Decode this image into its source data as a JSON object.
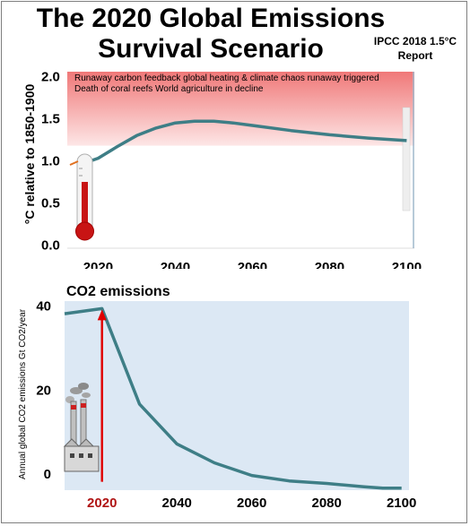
{
  "title_line1": "The 2020 Global Emissions",
  "title_line2": "Survival Scenario",
  "source_line1": "IPCC 2018 1.5°C",
  "source_line2": "Report",
  "colors": {
    "curve": "#3e7e86",
    "danger_zone_top": "#f07878",
    "danger_zone_bottom": "#fde6e6",
    "emissions_bg": "#dce8f4",
    "arrow": "#e00000",
    "year_2020_highlight": "#b01515",
    "thermometer_red": "#c81414"
  },
  "icons": {
    "thermometer": "thermometer-icon",
    "factory": "factory-smokestack-icon"
  },
  "chart_data": [
    {
      "type": "line",
      "title": "",
      "ylabel": "°C relative to 1850-1900",
      "xlabel": "",
      "x_ticks": [
        "2020",
        "2040",
        "2060",
        "2080",
        "2100"
      ],
      "y_ticks": [
        "0.0",
        "0.5",
        "1.0",
        "1.5",
        "2.0"
      ],
      "xlim": [
        2012,
        2102
      ],
      "ylim": [
        -0.05,
        2.05
      ],
      "shaded_zone": {
        "y_from": 1.17,
        "y_to": 2.05,
        "line1": "Runaway carbon feedback global heating & climate chaos runaway triggered",
        "line2": "Death of coral reefs  World agriculture in decline"
      },
      "series": [
        {
          "x": [
            2012,
            2015,
            2020,
            2025,
            2030,
            2035,
            2040,
            2045,
            2050,
            2055,
            2060,
            2070,
            2080,
            2090,
            2100
          ],
          "y": [
            0.88,
            0.94,
            1.02,
            1.16,
            1.29,
            1.38,
            1.44,
            1.46,
            1.46,
            1.44,
            1.41,
            1.35,
            1.3,
            1.26,
            1.23
          ]
        }
      ]
    },
    {
      "type": "line",
      "title": "CO2 emissions",
      "ylabel": "Annual global CO2 emissions Gt CO2/year",
      "xlabel": "",
      "x_ticks": [
        "2020",
        "2040",
        "2060",
        "2080",
        "2100"
      ],
      "highlight_tick": "2020",
      "y_ticks": [
        "0",
        "20",
        "40"
      ],
      "xlim": [
        2010,
        2102
      ],
      "ylim": [
        -4,
        41
      ],
      "series": [
        {
          "x": [
            2010,
            2020,
            2030,
            2040,
            2050,
            2060,
            2070,
            2080,
            2090,
            2095,
            2100
          ],
          "y": [
            38,
            39.2,
            16.5,
            7,
            2.5,
            -0.5,
            -1.8,
            -2.4,
            -3.2,
            -3.5,
            -3.5
          ]
        }
      ],
      "marker_arrow": {
        "x": 2020,
        "y_from": -2,
        "y_to": 39
      }
    }
  ]
}
